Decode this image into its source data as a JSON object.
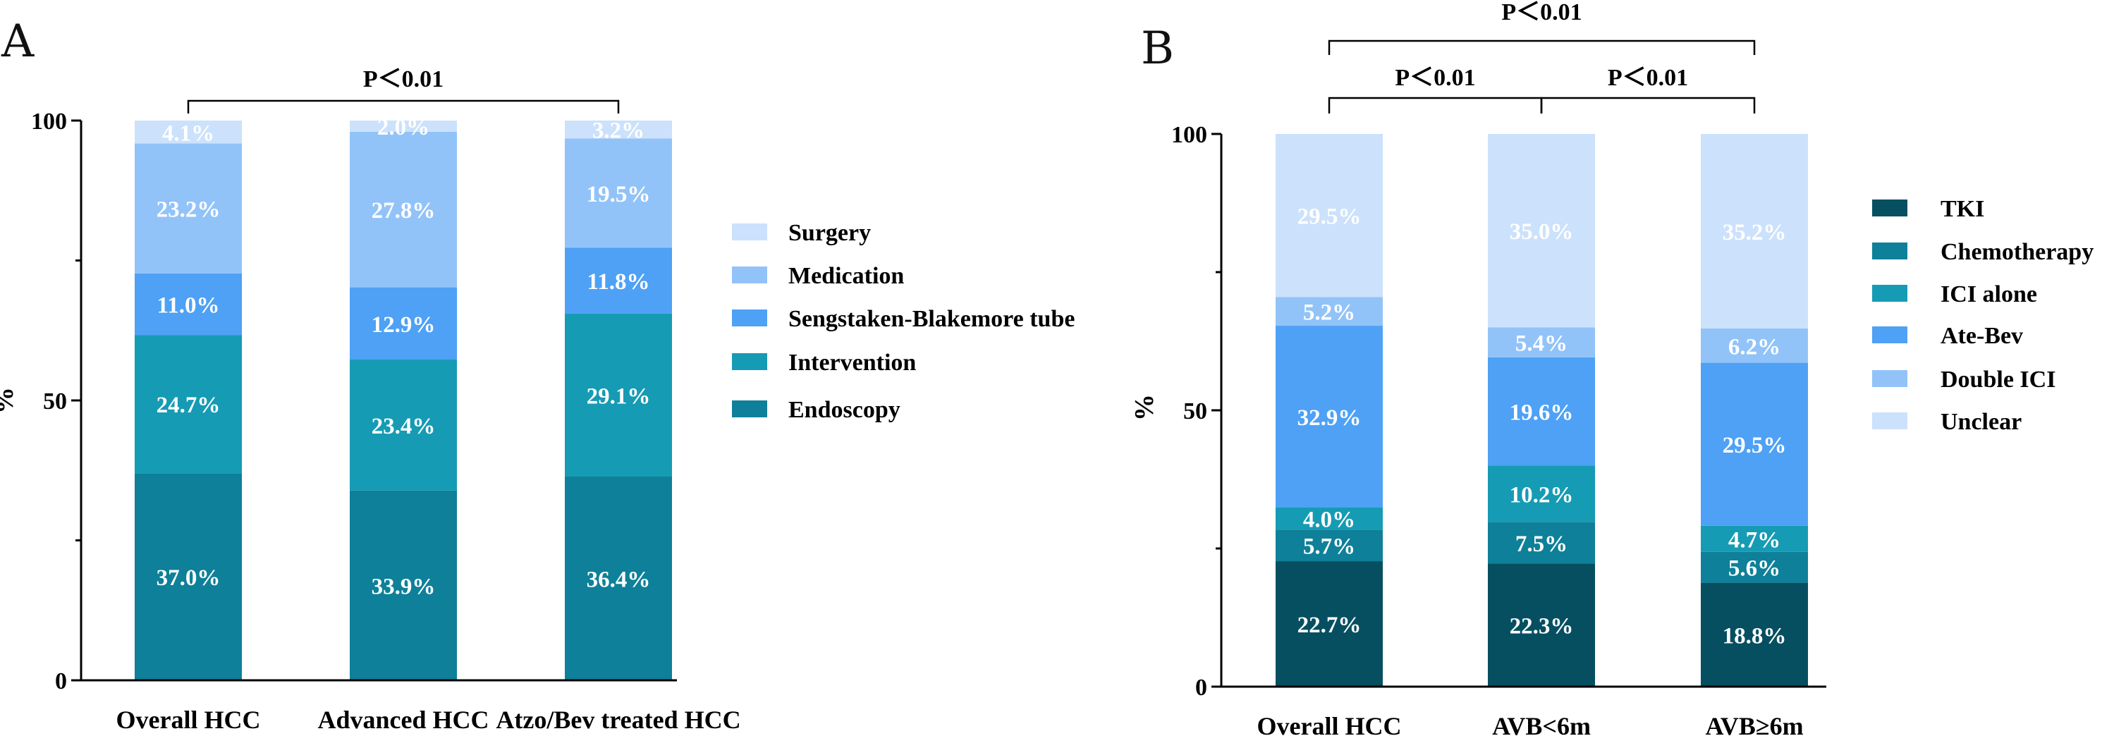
{
  "chart_data": [
    {
      "panel": "A",
      "type": "bar",
      "stacked": true,
      "ylabel": "%",
      "ylim": [
        0,
        100
      ],
      "yticks": [
        "0",
        "50",
        "100"
      ],
      "categories": [
        "Overall HCC",
        "Advanced HCC",
        "Atzo/Bev treated HCC"
      ],
      "series": [
        {
          "name": "Endoscopy",
          "color": "#0e8099",
          "values": [
            37.0,
            33.9,
            36.4
          ],
          "labels": [
            "37.0%",
            "33.9%",
            "36.4%"
          ]
        },
        {
          "name": "Intervention",
          "color": "#169bb4",
          "values": [
            24.7,
            23.4,
            29.1
          ],
          "labels": [
            "24.7%",
            "23.4%",
            "29.1%"
          ]
        },
        {
          "name": "Sengstaken-Blakemore tube",
          "color": "#4ea1f5",
          "values": [
            11.0,
            12.9,
            11.8
          ],
          "labels": [
            "11.0%",
            "12.9%",
            "11.8%"
          ]
        },
        {
          "name": "Medication",
          "color": "#92c3f8",
          "values": [
            23.2,
            27.8,
            19.5
          ],
          "labels": [
            "23.2%",
            "27.8%",
            "19.5%"
          ]
        },
        {
          "name": "Surgery",
          "color": "#cce1fb",
          "values": [
            4.1,
            2.0,
            3.2
          ],
          "labels": [
            "4.1%",
            "2.0%",
            "3.2%"
          ]
        }
      ],
      "legend_order": [
        "Surgery",
        "Medication",
        "Sengstaken-Blakemore tube",
        "Intervention",
        "Endoscopy"
      ],
      "legend_position": "right",
      "significance": [
        {
          "label": "P＜0.01",
          "from": 0,
          "to": 2
        }
      ],
      "grid": false
    },
    {
      "panel": "B",
      "type": "bar",
      "stacked": true,
      "ylabel": "%",
      "ylim": [
        0,
        100
      ],
      "yticks": [
        "0",
        "50",
        "100"
      ],
      "categories": [
        "Overall HCC",
        "AVB<6m",
        "AVB≥6m"
      ],
      "series": [
        {
          "name": "TKI",
          "color": "#064f61",
          "values": [
            22.7,
            22.3,
            18.8
          ],
          "labels": [
            "22.7%",
            "22.3%",
            "18.8%"
          ]
        },
        {
          "name": "Chemotherapy",
          "color": "#0e8099",
          "values": [
            5.7,
            7.5,
            5.6
          ],
          "labels": [
            "5.7%",
            "7.5%",
            "5.6%"
          ]
        },
        {
          "name": "ICI alone",
          "color": "#169bb4",
          "values": [
            4.0,
            10.2,
            4.7
          ],
          "labels": [
            "4.0%",
            "10.2%",
            "4.7%"
          ]
        },
        {
          "name": "Ate-Bev",
          "color": "#4ea1f5",
          "values": [
            32.9,
            19.6,
            29.5
          ],
          "labels": [
            "32.9%",
            "19.6%",
            "29.5%"
          ]
        },
        {
          "name": "Double ICI",
          "color": "#92c3f8",
          "values": [
            5.2,
            5.4,
            6.2
          ],
          "labels": [
            "5.2%",
            "5.4%",
            "6.2%"
          ]
        },
        {
          "name": "Unclear",
          "color": "#cce1fb",
          "values": [
            29.5,
            35.0,
            35.2
          ],
          "labels": [
            "29.5%",
            "35.0%",
            "35.2%"
          ]
        }
      ],
      "legend_order": [
        "TKI",
        "Chemotherapy",
        "ICI alone",
        "Ate-Bev",
        "Double ICI",
        "Unclear"
      ],
      "legend_position": "right",
      "significance": [
        {
          "label": "P＜0.01",
          "from": 0,
          "to": 2
        },
        {
          "label": "P＜0.01",
          "from": 0,
          "to": 1
        },
        {
          "label": "P＜0.01",
          "from": 1,
          "to": 2
        }
      ],
      "grid": false
    }
  ]
}
